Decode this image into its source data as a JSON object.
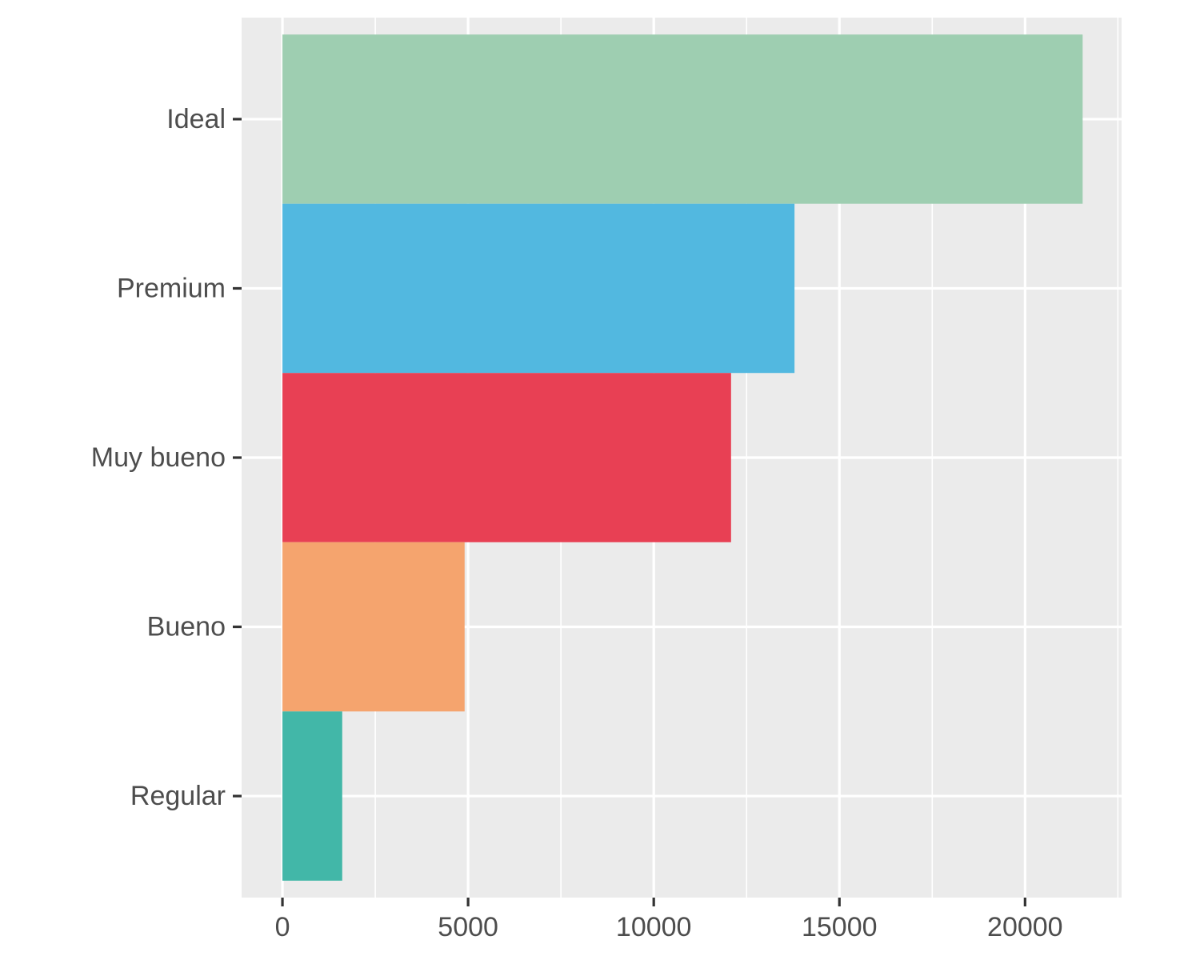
{
  "chart_data": {
    "type": "bar",
    "orientation": "horizontal",
    "title": "",
    "xlabel": "",
    "ylabel": "",
    "categories": [
      "Ideal",
      "Premium",
      "Muy bueno",
      "Bueno",
      "Regular"
    ],
    "values": [
      21551,
      13791,
      12082,
      4906,
      1610
    ],
    "colors": [
      "#9ECEB1",
      "#52B8E0",
      "#E84054",
      "#F5A46E",
      "#42B7A8"
    ],
    "xlim": [
      -1100,
      22600
    ],
    "xticks": [
      0,
      5000,
      10000,
      15000,
      20000
    ],
    "xtick_labels": [
      "0",
      "5000",
      "10000",
      "15000",
      "20000"
    ],
    "grid": true,
    "panel_background": "#EBEBEB",
    "grid_color": "#FFFFFF",
    "legend": "none"
  }
}
